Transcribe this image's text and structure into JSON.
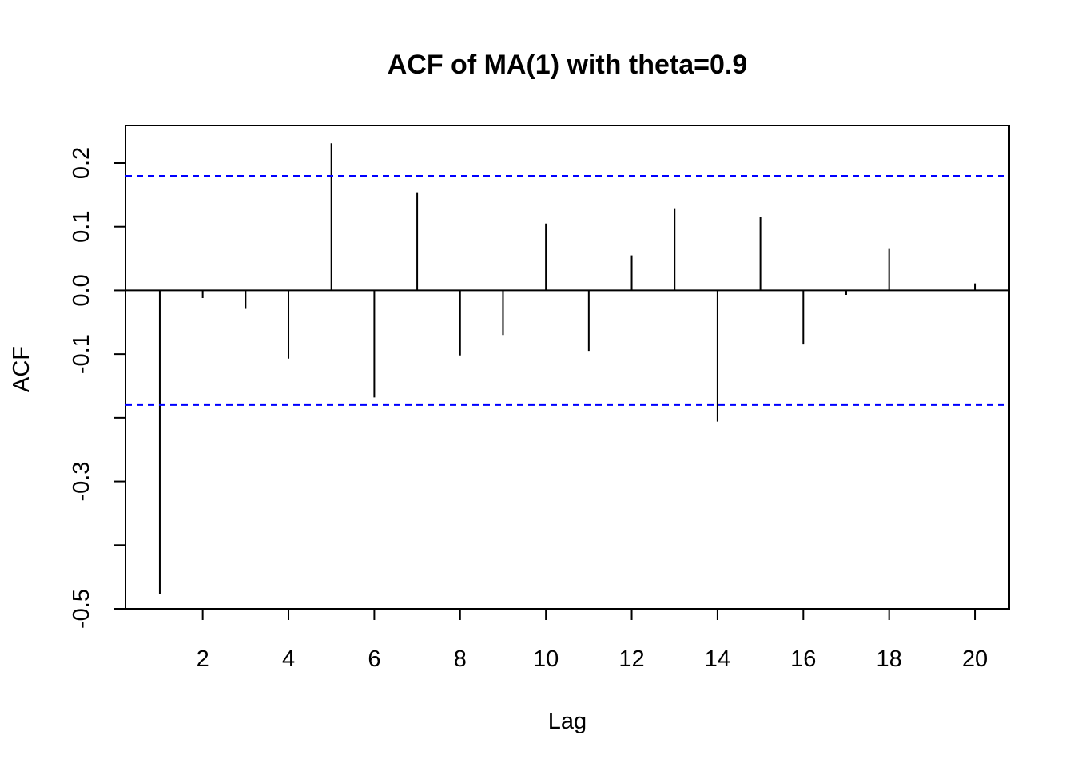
{
  "chart_data": {
    "type": "bar",
    "title": "ACF of MA(1) with theta=0.9",
    "xlabel": "Lag",
    "ylabel": "ACF",
    "xlim": [
      0.2,
      20.8
    ],
    "ylim": [
      -0.5,
      0.25
    ],
    "x_ticks": [
      2,
      4,
      6,
      8,
      10,
      12,
      14,
      16,
      18,
      20
    ],
    "x_tick_labels": [
      "2",
      "4",
      "6",
      "8",
      "10",
      "12",
      "14",
      "16",
      "18",
      "20"
    ],
    "y_ticks": [
      -0.5,
      -0.4,
      -0.3,
      -0.2,
      -0.1,
      0.0,
      0.1,
      0.2
    ],
    "y_tick_labels": [
      "-0.5",
      "",
      "-0.3",
      "",
      "-0.1",
      "0.0",
      "0.1",
      "0.2"
    ],
    "lags": [
      1,
      2,
      3,
      4,
      5,
      6,
      7,
      8,
      9,
      10,
      11,
      12,
      13,
      14,
      15,
      16,
      17,
      18,
      19,
      20
    ],
    "values": [
      -0.477,
      -0.012,
      -0.029,
      -0.107,
      0.231,
      -0.168,
      0.154,
      -0.102,
      -0.07,
      0.105,
      -0.095,
      0.055,
      0.129,
      -0.206,
      0.116,
      -0.085,
      -0.007,
      0.065,
      0.0,
      0.011
    ],
    "confidence_bounds": [
      0.18,
      -0.18
    ],
    "confidence_color": "#0000ff",
    "zero_line": true,
    "grid": false
  }
}
